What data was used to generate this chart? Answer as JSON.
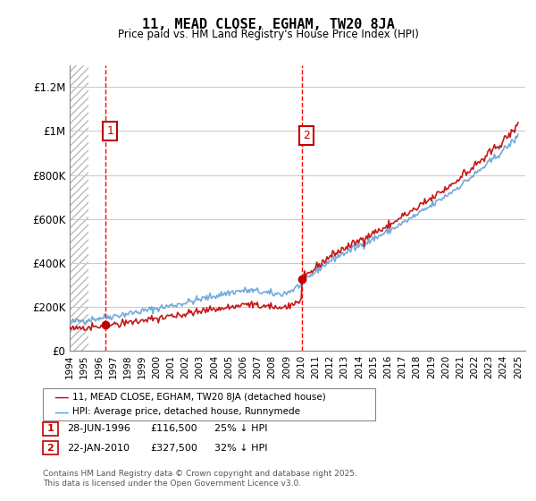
{
  "title": "11, MEAD CLOSE, EGHAM, TW20 8JA",
  "subtitle": "Price paid vs. HM Land Registry's House Price Index (HPI)",
  "ylabel": "",
  "xlabel": "",
  "ylim": [
    0,
    1300000
  ],
  "yticks": [
    0,
    200000,
    400000,
    600000,
    800000,
    1000000,
    1200000
  ],
  "ytick_labels": [
    "£0",
    "£200K",
    "£400K",
    "£600K",
    "£800K",
    "£1M",
    "£1.2M"
  ],
  "sale1_year": 1996.49,
  "sale1_price": 116500,
  "sale2_year": 2010.06,
  "sale2_price": 327500,
  "legend_line1": "11, MEAD CLOSE, EGHAM, TW20 8JA (detached house)",
  "legend_line2": "HPI: Average price, detached house, Runnymede",
  "table_row1": [
    "1",
    "28-JUN-1996",
    "£116,500",
    "25% ↓ HPI"
  ],
  "table_row2": [
    "2",
    "22-JAN-2010",
    "£327,500",
    "32% ↓ HPI"
  ],
  "footnote": "Contains HM Land Registry data © Crown copyright and database right 2025.\nThis data is licensed under the Open Government Licence v3.0.",
  "hpi_color": "#5b9bd5",
  "price_color": "#c00000",
  "vline_color": "#ff0000",
  "background_hatch_color": "#d0d0d0",
  "grid_color": "#cccccc"
}
